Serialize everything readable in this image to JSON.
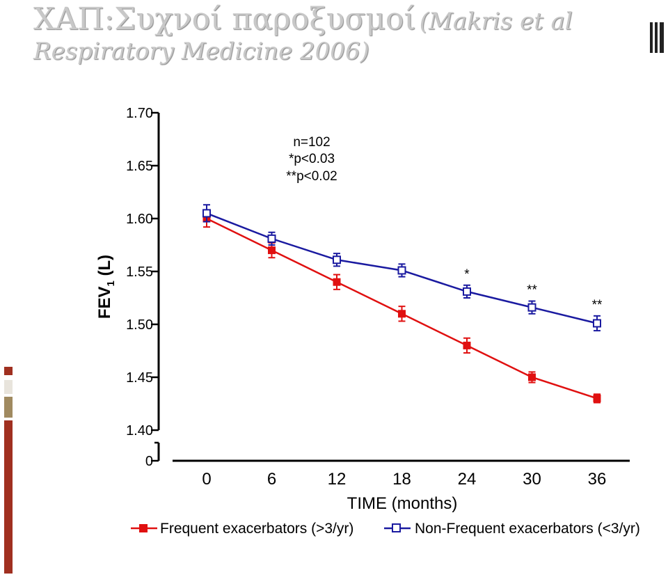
{
  "title": {
    "main": "ΧΑΠ:Συχνοί παροξυσμοί",
    "citation_part1": "(Makris et al",
    "citation_part2": "Respiratory Medicine 2006)"
  },
  "colors": {
    "title": "#c8c8c8",
    "frequent": "#e01010",
    "non_frequent": "#1a1aa0",
    "accent_bar": "#a03020",
    "accent_bar_tan": "#a08a60"
  },
  "chart_data": {
    "type": "line",
    "xlabel": "TIME (months)",
    "ylabel": "FEV1 (L)",
    "ylabel_main": "FEV",
    "ylabel_sub": "1",
    "ylabel_unit": " (L)",
    "ylim": [
      1.4,
      1.7
    ],
    "y_ticks": [
      "1.70",
      "1.65",
      "1.60",
      "1.55",
      "1.50",
      "1.45",
      "1.40"
    ],
    "y_tick_values": [
      1.7,
      1.65,
      1.6,
      1.55,
      1.5,
      1.45,
      1.4
    ],
    "y_break_label": "0",
    "x": [
      0,
      6,
      12,
      18,
      24,
      30,
      36
    ],
    "x_tick_labels": [
      "0",
      "6",
      "12",
      "18",
      "24",
      "30",
      "36"
    ],
    "series": [
      {
        "name": "Frequent exacerbators (>3/yr)",
        "marker": "filled-square",
        "color": "#e01010",
        "values": [
          1.6,
          1.57,
          1.54,
          1.51,
          1.48,
          1.45,
          1.43
        ],
        "errors": [
          0.008,
          0.007,
          0.007,
          0.007,
          0.007,
          0.005,
          0.004
        ]
      },
      {
        "name": "Non-Frequent exacerbators (<3/yr)",
        "marker": "open-square",
        "color": "#1a1aa0",
        "values": [
          1.605,
          1.581,
          1.561,
          1.551,
          1.531,
          1.516,
          1.501
        ],
        "errors": [
          0.008,
          0.006,
          0.006,
          0.006,
          0.006,
          0.006,
          0.007
        ]
      }
    ],
    "significance": [
      {
        "x": 24,
        "label": "*"
      },
      {
        "x": 30,
        "label": "**"
      },
      {
        "x": 36,
        "label": "**"
      }
    ],
    "annotations": [
      "n=102",
      "*p<0.03",
      "**p<0.02"
    ],
    "legend_position": "bottom",
    "grid": false
  }
}
